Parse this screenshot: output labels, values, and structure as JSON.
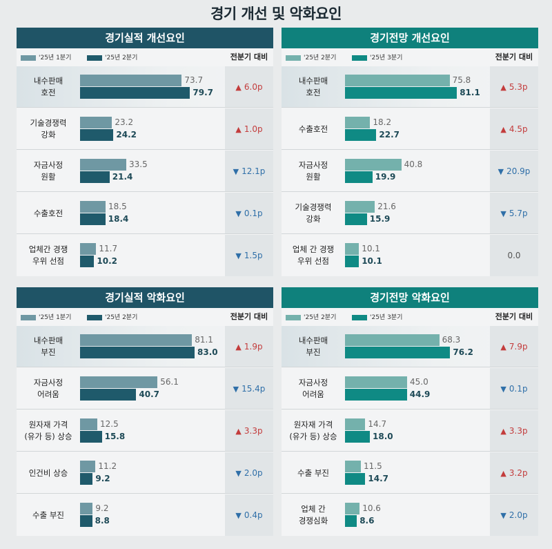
{
  "title": "경기 개선 및 악화요인",
  "colors": {
    "perf_header": "#1f5466",
    "outlook_header": "#0f817c",
    "perf_prev": "#6f98a3",
    "perf_curr": "#1f5a6b",
    "outlook_prev": "#74b1ac",
    "outlook_curr": "#0f8a84",
    "up": "#c33c3c",
    "down": "#2f6fa8"
  },
  "change_header": "전분기 대비",
  "chart_data": [
    {
      "type": "bar",
      "title": "경기실적 개선요인",
      "scheme": "perf",
      "series": [
        {
          "name": "'25년 1분기",
          "values": [
            73.7,
            23.2,
            33.5,
            18.5,
            11.7
          ]
        },
        {
          "name": "'25년 2분기",
          "values": [
            79.7,
            24.2,
            21.4,
            18.4,
            10.2
          ]
        }
      ],
      "categories": [
        "내수판매\n호전",
        "기술경쟁력\n강화",
        "자금사정\n원활",
        "수출호전",
        "업체간 경쟁\n우위 선점"
      ],
      "changes": [
        {
          "dir": "up",
          "text": "6.0p"
        },
        {
          "dir": "up",
          "text": "1.0p"
        },
        {
          "dir": "down",
          "text": "12.1p"
        },
        {
          "dir": "down",
          "text": "0.1p"
        },
        {
          "dir": "down",
          "text": "1.5p"
        }
      ]
    },
    {
      "type": "bar",
      "title": "경기전망 개선요인",
      "scheme": "outlook",
      "series": [
        {
          "name": "'25년 2분기",
          "values": [
            75.8,
            18.2,
            40.8,
            21.6,
            10.1
          ]
        },
        {
          "name": "'25년 3분기",
          "values": [
            81.1,
            22.7,
            19.9,
            15.9,
            10.1
          ]
        }
      ],
      "categories": [
        "내수판매\n호전",
        "수출호전",
        "자금사정\n원활",
        "기술경쟁력\n강화",
        "업체 간 경쟁\n우위 선점"
      ],
      "changes": [
        {
          "dir": "up",
          "text": "5.3p"
        },
        {
          "dir": "up",
          "text": "4.5p"
        },
        {
          "dir": "down",
          "text": "20.9p"
        },
        {
          "dir": "down",
          "text": "5.7p"
        },
        {
          "dir": "flat",
          "text": "0.0"
        }
      ]
    },
    {
      "type": "bar",
      "title": "경기실적 악화요인",
      "scheme": "perf",
      "series": [
        {
          "name": "'25년 1분기",
          "values": [
            81.1,
            56.1,
            12.5,
            11.2,
            9.2
          ]
        },
        {
          "name": "'25년 2분기",
          "values": [
            83.0,
            40.7,
            15.8,
            9.2,
            8.8
          ]
        }
      ],
      "categories": [
        "내수판매\n부진",
        "자금사정\n어려움",
        "원자재 가격\n(유가 등) 상승",
        "인건비 상승",
        "수출 부진"
      ],
      "changes": [
        {
          "dir": "up",
          "text": "1.9p"
        },
        {
          "dir": "down",
          "text": "15.4p"
        },
        {
          "dir": "up",
          "text": "3.3p"
        },
        {
          "dir": "down",
          "text": "2.0p"
        },
        {
          "dir": "down",
          "text": "0.4p"
        }
      ]
    },
    {
      "type": "bar",
      "title": "경기전망 악화요인",
      "scheme": "outlook",
      "series": [
        {
          "name": "'25년 2분기",
          "values": [
            68.3,
            45.0,
            14.7,
            11.5,
            10.6
          ]
        },
        {
          "name": "'25년 3분기",
          "values": [
            76.2,
            44.9,
            18.0,
            14.7,
            8.6
          ]
        }
      ],
      "categories": [
        "내수판매\n부진",
        "자금사정\n어려움",
        "원자재 가격\n(유가 등) 상승",
        "수출 부진",
        "업체 간\n경쟁심화"
      ],
      "changes": [
        {
          "dir": "up",
          "text": "7.9p"
        },
        {
          "dir": "down",
          "text": "0.1p"
        },
        {
          "dir": "up",
          "text": "3.3p"
        },
        {
          "dir": "up",
          "text": "3.2p"
        },
        {
          "dir": "down",
          "text": "2.0p"
        }
      ]
    }
  ]
}
